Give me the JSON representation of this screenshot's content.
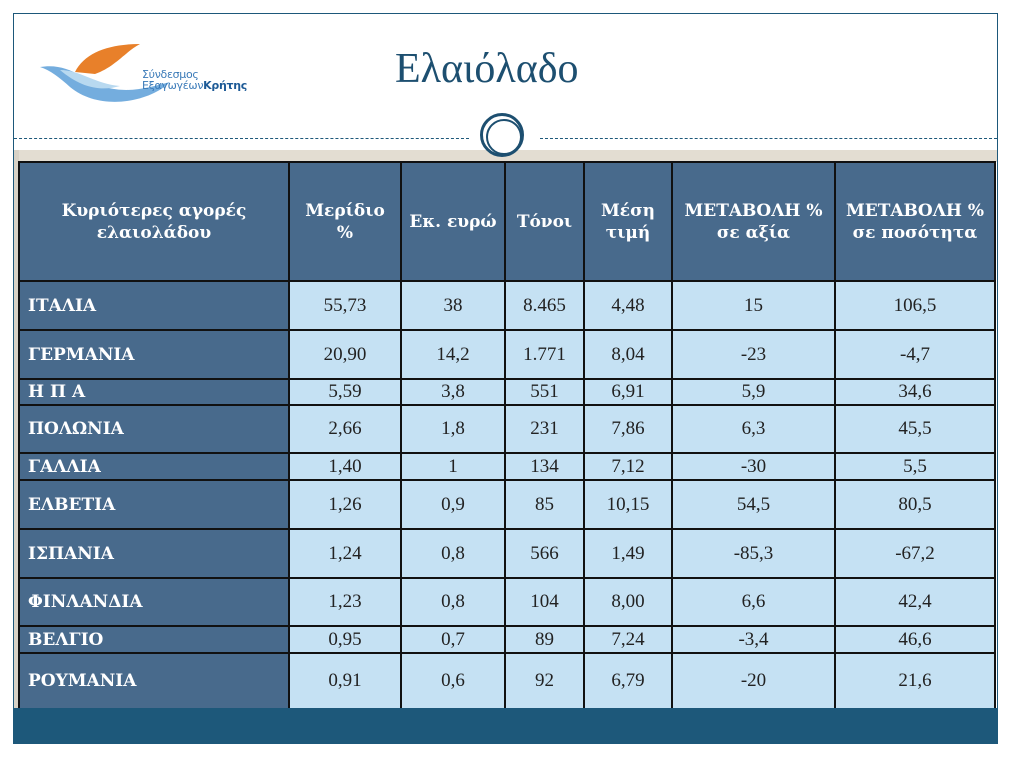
{
  "header": {
    "logo_text_line1": "Σύνδεσμος",
    "logo_text_line2a": "Εξαγωγέων",
    "logo_text_line2b": "Κρήτης",
    "title": "Ελαιόλαδο"
  },
  "colors": {
    "header_cell": "#486a8c",
    "data_cell": "#c5e1f3",
    "accent": "#1d587a"
  },
  "table": {
    "columns": [
      "Κυριότερες αγορές ελαιολάδου",
      "Μερίδιο %",
      "Εκ. ευρώ",
      "Τόνοι",
      "Μέση τιμή",
      "ΜΕΤΑΒΟΛΗ % σε αξία",
      "ΜΕΤΑΒΟΛΗ % σε ποσότητα"
    ],
    "rows": [
      [
        "ΙΤΑΛΙΑ",
        "55,73",
        "38",
        "8.465",
        "4,48",
        "15",
        "106,5"
      ],
      [
        "ΓΕΡΜΑΝΙΑ",
        "20,90",
        "14,2",
        "1.771",
        "8,04",
        "-23",
        "-4,7"
      ],
      [
        "Η Π Α",
        "5,59",
        "3,8",
        "551",
        "6,91",
        "5,9",
        "34,6"
      ],
      [
        "ΠΟΛΩΝΙΑ",
        "2,66",
        "1,8",
        "231",
        "7,86",
        "6,3",
        "45,5"
      ],
      [
        "ΓΑΛΛΙΑ",
        "1,40",
        "1",
        "134",
        "7,12",
        "-30",
        "5,5"
      ],
      [
        "ΕΛΒΕΤΙΑ",
        "1,26",
        "0,9",
        "85",
        "10,15",
        "54,5",
        "80,5"
      ],
      [
        "ΙΣΠΑΝΙΑ",
        "1,24",
        "0,8",
        "566",
        "1,49",
        "-85,3",
        "-67,2"
      ],
      [
        "ΦΙΝΛΑΝΔΙΑ",
        "1,23",
        "0,8",
        "104",
        "8,00",
        "6,6",
        "42,4"
      ],
      [
        "ΒΕΛΓΙΟ",
        "0,95",
        "0,7",
        "89",
        "7,24",
        "-3,4",
        "46,6"
      ],
      [
        "ΡΟΥΜΑΝΙΑ",
        "0,91",
        "0,6",
        "92",
        "6,79",
        "-20",
        "21,6"
      ]
    ]
  }
}
